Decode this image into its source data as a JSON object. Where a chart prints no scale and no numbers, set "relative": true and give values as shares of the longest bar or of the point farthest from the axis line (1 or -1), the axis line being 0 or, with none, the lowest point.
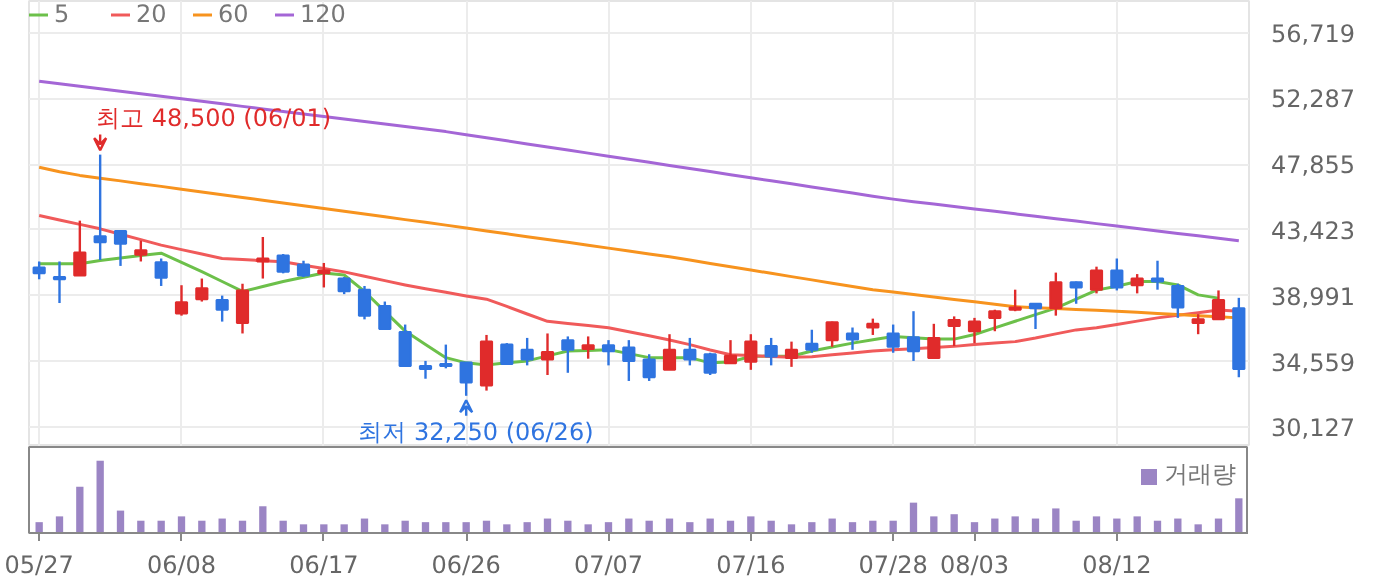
{
  "chart_data": [
    {
      "type": "candlestick",
      "categories": [
        "05/27",
        null,
        null,
        null,
        null,
        null,
        null,
        "06/08",
        null,
        null,
        null,
        null,
        null,
        null,
        "06/17",
        null,
        null,
        null,
        null,
        null,
        null,
        "06/26",
        null,
        null,
        null,
        null,
        null,
        null,
        "07/07",
        null,
        null,
        null,
        null,
        null,
        null,
        "07/16",
        null,
        null,
        null,
        null,
        null,
        null,
        "07/28",
        null,
        null,
        null,
        "08/03",
        null,
        null,
        null,
        null,
        null,
        null,
        "08/12",
        null,
        null,
        null,
        null,
        null,
        null
      ],
      "ohlc": [
        [
          40900,
          41300,
          40100,
          40500
        ],
        [
          40250,
          41300,
          38500,
          40100
        ],
        [
          40350,
          44050,
          40350,
          41900
        ],
        [
          43000,
          48500,
          41400,
          42600
        ],
        [
          43350,
          43400,
          41000,
          42500
        ],
        [
          41750,
          42700,
          41300,
          42050
        ],
        [
          41250,
          41500,
          39650,
          40200
        ],
        [
          37800,
          39700,
          37650,
          38550
        ],
        [
          38750,
          40150,
          38600,
          39500
        ],
        [
          38700,
          39000,
          37250,
          38050
        ],
        [
          37150,
          39800,
          36450,
          39350
        ],
        [
          41300,
          42950,
          40150,
          41500
        ],
        [
          41700,
          41800,
          40500,
          40600
        ],
        [
          41100,
          41350,
          40250,
          40350
        ],
        [
          40500,
          41200,
          39550,
          40700
        ],
        [
          40150,
          40250,
          39100,
          39300
        ],
        [
          39400,
          39650,
          37400,
          37650
        ],
        [
          38300,
          38600,
          36700,
          36750
        ],
        [
          36550,
          37050,
          34250,
          34250
        ],
        [
          34250,
          34600,
          33400,
          34050
        ],
        [
          34400,
          35700,
          34100,
          34250
        ],
        [
          34500,
          34500,
          32250,
          33150
        ],
        [
          32950,
          36350,
          32600,
          35900
        ],
        [
          35700,
          35800,
          34350,
          34400
        ],
        [
          35350,
          36150,
          34300,
          34700
        ],
        [
          34700,
          36450,
          33650,
          35200
        ],
        [
          36000,
          36250,
          33800,
          35350
        ],
        [
          35400,
          36250,
          34750,
          35650
        ],
        [
          35650,
          36000,
          34300,
          35250
        ],
        [
          35500,
          36000,
          33250,
          34600
        ],
        [
          34700,
          35050,
          33250,
          33500
        ],
        [
          34000,
          36400,
          34000,
          35350
        ],
        [
          35350,
          36150,
          34300,
          34700
        ],
        [
          35050,
          35150,
          33650,
          33800
        ],
        [
          34450,
          36000,
          34400,
          34950
        ],
        [
          34550,
          36400,
          34000,
          35900
        ],
        [
          35600,
          36150,
          34300,
          34900
        ],
        [
          34800,
          35900,
          34200,
          35350
        ],
        [
          35750,
          36700,
          35150,
          35350
        ],
        [
          36000,
          37250,
          35550,
          37200
        ],
        [
          36450,
          36850,
          35350,
          36050
        ],
        [
          36850,
          37450,
          36350,
          37100
        ],
        [
          36450,
          37050,
          35150,
          35550
        ],
        [
          36200,
          37950,
          34600,
          35250
        ],
        [
          34800,
          37100,
          34750,
          36150
        ],
        [
          36950,
          37600,
          35600,
          37350
        ],
        [
          36600,
          37500,
          35800,
          37250
        ],
        [
          37500,
          38050,
          36600,
          37950
        ],
        [
          38050,
          39400,
          37950,
          38200
        ],
        [
          38450,
          38450,
          36750,
          38150
        ],
        [
          38150,
          40550,
          37650,
          39900
        ],
        [
          39900,
          39950,
          38450,
          39550
        ],
        [
          39400,
          40950,
          39150,
          40700
        ],
        [
          40700,
          41500,
          39350,
          39550
        ],
        [
          39700,
          40450,
          39150,
          40150
        ],
        [
          40150,
          41350,
          39400,
          39950
        ],
        [
          39650,
          39800,
          37500,
          38200
        ],
        [
          37150,
          37750,
          36400,
          37400
        ],
        [
          37400,
          39350,
          37400,
          38700
        ],
        [
          38150,
          38850,
          33500,
          34050
        ]
      ],
      "series": [
        {
          "name": "5",
          "type": "line",
          "color": "#6cc04a",
          "values": [
            41150,
            41150,
            41150,
            41370,
            41530,
            41700,
            41860,
            41240,
            40610,
            39950,
            39280,
            39610,
            39950,
            40240,
            40520,
            40390,
            39280,
            37940,
            36610,
            35710,
            34820,
            34470,
            34330,
            34470,
            34600,
            34940,
            35270,
            35310,
            35360,
            35090,
            34820,
            34820,
            34820,
            34470,
            34520,
            34910,
            34910,
            34910,
            35270,
            35540,
            35800,
            36030,
            36250,
            36160,
            36070,
            36070,
            36380,
            36830,
            37270,
            37720,
            38160,
            38760,
            39370,
            39630,
            39950,
            39950,
            39720,
            39050,
            38830,
            null
          ]
        },
        {
          "name": "20",
          "type": "line",
          "color": "#f05a5a",
          "values": [
            44400,
            44100,
            43800,
            43500,
            43130,
            42770,
            42400,
            42100,
            41800,
            41500,
            41430,
            41350,
            41280,
            41050,
            40830,
            40600,
            40310,
            40010,
            39720,
            39460,
            39230,
            38980,
            38760,
            38270,
            37760,
            37270,
            37120,
            36980,
            36830,
            36560,
            36290,
            36010,
            35700,
            35340,
            35020,
            34960,
            34900,
            34840,
            34880,
            35010,
            35140,
            35270,
            35350,
            35420,
            35500,
            35580,
            35700,
            35800,
            35900,
            36140,
            36420,
            36690,
            36830,
            37050,
            37280,
            37500,
            37680,
            37850,
            38030,
            37940
          ]
        },
        {
          "name": "60",
          "type": "line",
          "color": "#f7931e",
          "values": [
            47650,
            47350,
            47100,
            46910,
            46730,
            46540,
            46360,
            46170,
            45980,
            45800,
            45610,
            45430,
            45240,
            45050,
            44870,
            44680,
            44500,
            44310,
            44120,
            43940,
            43750,
            43560,
            43360,
            43170,
            42970,
            42780,
            42590,
            42390,
            42200,
            42000,
            41810,
            41620,
            41400,
            41170,
            40950,
            40730,
            40500,
            40280,
            40060,
            39840,
            39610,
            39400,
            39240,
            39070,
            38910,
            38740,
            38580,
            38420,
            38250,
            38190,
            38130,
            38070,
            38010,
            37950,
            37880,
            37800,
            37730,
            37650,
            37580,
            37500
          ]
        },
        {
          "name": "120",
          "type": "line",
          "color": "#a466d6",
          "values": [
            53450,
            53280,
            53110,
            52940,
            52770,
            52600,
            52430,
            52260,
            52090,
            51920,
            51750,
            51580,
            51410,
            51240,
            51070,
            50900,
            50730,
            50560,
            50390,
            50220,
            50050,
            49840,
            49630,
            49430,
            49220,
            49010,
            48810,
            48600,
            48390,
            48190,
            47980,
            47770,
            47560,
            47360,
            47150,
            46940,
            46740,
            46530,
            46320,
            46120,
            45910,
            45700,
            45500,
            45330,
            45170,
            45000,
            44840,
            44680,
            44510,
            44350,
            44180,
            44020,
            43850,
            43690,
            43520,
            43360,
            43190,
            43030,
            42860,
            42700
          ]
        }
      ],
      "ylim": [
        28800,
        58850
      ],
      "yticks": [
        {
          "value": 30127,
          "label": "30,127"
        },
        {
          "value": 34559,
          "label": "34,559"
        },
        {
          "value": 38991,
          "label": "38,991"
        },
        {
          "value": 43423,
          "label": "43,423"
        },
        {
          "value": 47855,
          "label": "47,855"
        },
        {
          "value": 52287,
          "label": "52,287"
        },
        {
          "value": 56719,
          "label": "56,719"
        }
      ],
      "grid": true,
      "legend": "top left",
      "tick_labels": "y",
      "annotations": [
        "최고 48,500 (06/01)",
        {
          "text": "최저 32,250 (06/26)",
          "x": "06/26",
          "y": 32250
        }
      ]
    },
    {
      "type": "bar",
      "categories": [
        "05/27",
        null,
        null,
        null,
        null,
        null,
        null,
        "06/08",
        null,
        null,
        null,
        null,
        null,
        null,
        "06/17",
        null,
        null,
        null,
        null,
        null,
        null,
        "06/26",
        null,
        null,
        null,
        null,
        null,
        null,
        "07/07",
        null,
        null,
        null,
        null,
        null,
        null,
        "07/16",
        null,
        null,
        null,
        null,
        null,
        null,
        "07/28",
        null,
        null,
        null,
        "08/03",
        null,
        null,
        null,
        null,
        null,
        null,
        "08/12",
        null,
        null,
        null,
        null,
        null,
        null
      ],
      "relative": true,
      "legend": "top right",
      "tick_labels": "x",
      "series": [
        {
          "name": "거래량",
          "color": "#9b85c4",
          "values": [
            0.15,
            0.23,
            0.64,
            1,
            0.31,
            0.17,
            0.17,
            0.23,
            0.17,
            0.2,
            0.17,
            0.37,
            0.17,
            0.12,
            0.12,
            0.12,
            0.2,
            0.12,
            0.17,
            0.15,
            0.15,
            0.15,
            0.17,
            0.12,
            0.15,
            0.2,
            0.17,
            0.12,
            0.15,
            0.2,
            0.17,
            0.2,
            0.15,
            0.2,
            0.17,
            0.23,
            0.17,
            0.12,
            0.15,
            0.2,
            0.15,
            0.17,
            0.17,
            0.42,
            0.23,
            0.26,
            0.15,
            0.2,
            0.23,
            0.2,
            0.34,
            0.17,
            0.23,
            0.2,
            0.23,
            0.17,
            0.2,
            0.12,
            0.2,
            0.48
          ]
        }
      ]
    }
  ]
}
